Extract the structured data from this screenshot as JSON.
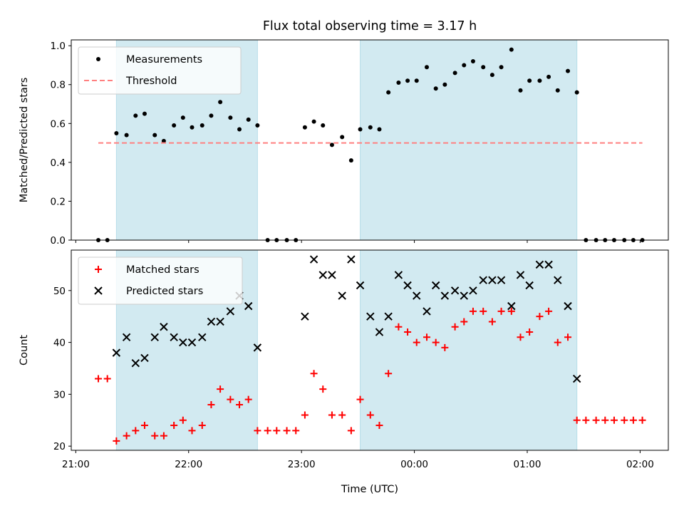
{
  "chart_data": [
    {
      "type": "scatter",
      "title": "Flux total observing time = 3.17 h",
      "xlabel": "",
      "ylabel": "Matched/Predicted stars",
      "x_unit": "time (UTC), decimal hours continuing past midnight",
      "xlim": [
        20.96,
        26.25
      ],
      "ylim": [
        0.0,
        1.03
      ],
      "yticks": [
        0.0,
        0.2,
        0.4,
        0.6,
        0.8,
        1.0
      ],
      "ytick_labels": [
        "0.0",
        "0.2",
        "0.4",
        "0.6",
        "0.8",
        "1.0"
      ],
      "grid": false,
      "legend_position": "upper left",
      "shaded_intervals": [
        [
          21.36,
          22.61
        ],
        [
          23.52,
          25.44
        ]
      ],
      "shade_color": "#add8e6",
      "series": [
        {
          "name": "Measurements",
          "marker": "dot",
          "color": "#000000",
          "x": [
            21.2,
            21.28,
            21.36,
            21.45,
            21.53,
            21.61,
            21.7,
            21.78,
            21.87,
            21.95,
            22.03,
            22.12,
            22.2,
            22.28,
            22.37,
            22.45,
            22.53,
            22.61,
            22.7,
            22.78,
            22.87,
            22.95,
            23.03,
            23.11,
            23.19,
            23.27,
            23.36,
            23.44,
            23.52,
            23.61,
            23.69,
            23.77,
            23.86,
            23.94,
            24.02,
            24.11,
            24.19,
            24.27,
            24.36,
            24.44,
            24.52,
            24.61,
            24.69,
            24.77,
            24.86,
            24.94,
            25.02,
            25.11,
            25.19,
            25.27,
            25.36,
            25.44,
            25.52,
            25.61,
            25.69,
            25.77,
            25.86,
            25.94,
            26.02
          ],
          "y": [
            0.0,
            0.0,
            0.55,
            0.54,
            0.64,
            0.65,
            0.54,
            0.51,
            0.59,
            0.63,
            0.58,
            0.59,
            0.64,
            0.71,
            0.63,
            0.57,
            0.62,
            0.59,
            0.0,
            0.0,
            0.0,
            0.0,
            0.58,
            0.61,
            0.59,
            0.49,
            0.53,
            0.41,
            0.57,
            0.58,
            0.57,
            0.76,
            0.81,
            0.82,
            0.82,
            0.89,
            0.78,
            0.8,
            0.86,
            0.9,
            0.92,
            0.89,
            0.85,
            0.89,
            0.98,
            0.77,
            0.82,
            0.82,
            0.84,
            0.77,
            0.87,
            0.76,
            0.0,
            0.0,
            0.0,
            0.0,
            0.0,
            0.0,
            0.0
          ]
        },
        {
          "name": "Threshold",
          "style": "dashed",
          "color": "#ff7f7f",
          "x": [
            21.2,
            26.02
          ],
          "y": [
            0.5,
            0.5
          ]
        }
      ]
    },
    {
      "type": "scatter",
      "title": "",
      "xlabel": "Time (UTC)",
      "ylabel": "Count",
      "x_unit": "time (UTC), decimal hours continuing past midnight",
      "xlim": [
        20.96,
        26.25
      ],
      "ylim": [
        19.2,
        57.8
      ],
      "xticks": [
        21,
        22,
        23,
        24,
        25,
        26
      ],
      "xtick_labels": [
        "21:00",
        "22:00",
        "23:00",
        "00:00",
        "01:00",
        "02:00"
      ],
      "yticks": [
        20,
        30,
        40,
        50
      ],
      "ytick_labels": [
        "20",
        "30",
        "40",
        "50"
      ],
      "grid": false,
      "legend_position": "upper left",
      "shaded_intervals": [
        [
          21.36,
          22.61
        ],
        [
          23.52,
          25.44
        ]
      ],
      "shade_color": "#add8e6",
      "series": [
        {
          "name": "Matched stars",
          "marker": "plus",
          "color": "#ff0000",
          "x": [
            21.2,
            21.28,
            21.36,
            21.45,
            21.53,
            21.61,
            21.7,
            21.78,
            21.87,
            21.95,
            22.03,
            22.12,
            22.2,
            22.28,
            22.37,
            22.45,
            22.53,
            22.61,
            22.7,
            22.78,
            22.87,
            22.95,
            23.03,
            23.11,
            23.19,
            23.27,
            23.36,
            23.44,
            23.52,
            23.61,
            23.69,
            23.77,
            23.86,
            23.94,
            24.02,
            24.11,
            24.19,
            24.27,
            24.36,
            24.44,
            24.52,
            24.61,
            24.69,
            24.77,
            24.86,
            24.94,
            25.02,
            25.11,
            25.19,
            25.27,
            25.36,
            25.44,
            25.52,
            25.61,
            25.69,
            25.77,
            25.86,
            25.94,
            26.02
          ],
          "y": [
            33,
            33,
            21,
            22,
            23,
            24,
            22,
            22,
            24,
            25,
            23,
            24,
            28,
            31,
            29,
            28,
            29,
            23,
            23,
            23,
            23,
            23,
            26,
            34,
            31,
            26,
            26,
            23,
            29,
            26,
            24,
            34,
            43,
            42,
            40,
            41,
            40,
            39,
            43,
            44,
            46,
            46,
            44,
            46,
            46,
            41,
            42,
            45,
            46,
            40,
            41,
            25,
            25,
            25,
            25,
            25,
            25,
            25,
            25
          ]
        },
        {
          "name": "Predicted stars",
          "marker": "x",
          "color": "#000000",
          "x": [
            21.36,
            21.45,
            21.53,
            21.61,
            21.7,
            21.78,
            21.87,
            21.95,
            22.03,
            22.12,
            22.2,
            22.28,
            22.37,
            22.45,
            22.53,
            22.61,
            23.03,
            23.11,
            23.19,
            23.27,
            23.36,
            23.44,
            23.52,
            23.61,
            23.69,
            23.77,
            23.86,
            23.94,
            24.02,
            24.11,
            24.19,
            24.27,
            24.36,
            24.44,
            24.52,
            24.61,
            24.69,
            24.77,
            24.86,
            24.94,
            25.02,
            25.11,
            25.19,
            25.27,
            25.36,
            25.44
          ],
          "y": [
            38,
            41,
            36,
            37,
            41,
            43,
            41,
            40,
            40,
            41,
            44,
            44,
            46,
            49,
            47,
            39,
            45,
            56,
            53,
            53,
            49,
            56,
            51,
            45,
            42,
            45,
            53,
            51,
            49,
            46,
            51,
            49,
            50,
            49,
            50,
            52,
            52,
            52,
            47,
            53,
            51,
            55,
            55,
            52,
            47,
            33
          ]
        }
      ]
    }
  ]
}
